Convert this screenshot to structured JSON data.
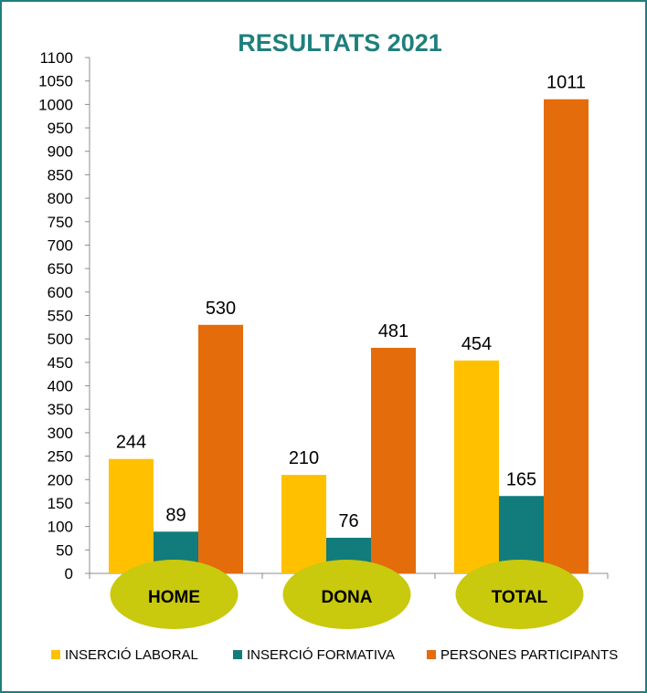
{
  "chart_data": {
    "type": "bar",
    "title": "RESULTATS 2021",
    "title_color": "#1f7f7c",
    "categories": [
      "HOME",
      "DONA",
      "TOTAL"
    ],
    "category_badge_color": "#c9c90e",
    "series": [
      {
        "name": "INSERCIÓ LABORAL",
        "values": [
          244,
          210,
          454
        ],
        "color": "#ffc000"
      },
      {
        "name": "INSERCIÓ FORMATIVA",
        "values": [
          89,
          76,
          165
        ],
        "color": "#117c7b"
      },
      {
        "name": "PERSONES PARTICIPANTS",
        "values": [
          530,
          481,
          1011
        ],
        "color": "#e46c0a"
      }
    ],
    "ylim": [
      0,
      1100
    ],
    "ytick_step": 50,
    "grid": false,
    "legend": "bottom"
  }
}
